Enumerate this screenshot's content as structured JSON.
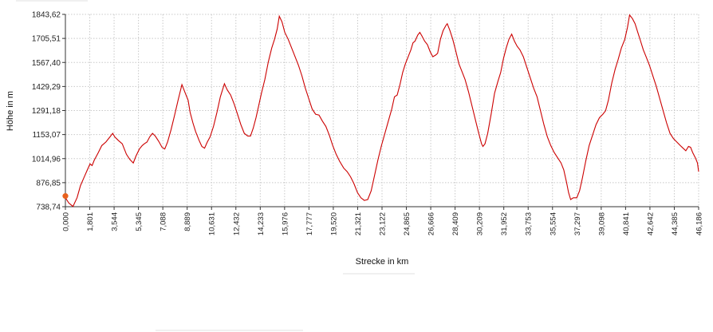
{
  "chart_data": {
    "type": "line",
    "xlabel": "Strecke  in  km",
    "ylabel": "Höhe  in  m",
    "xlim": [
      0,
      46.186
    ],
    "ylim": [
      738.74,
      1843.62
    ],
    "x_ticks": [
      "0,000",
      "1,801",
      "3,544",
      "5,345",
      "7,088",
      "8,889",
      "10,631",
      "12,432",
      "14,233",
      "15,976",
      "17,777",
      "19,520",
      "21,321",
      "23,122",
      "24,865",
      "26,666",
      "28,409",
      "30,209",
      "31,952",
      "33,753",
      "35,554",
      "37,297",
      "39,098",
      "40,841",
      "42,642",
      "44,385",
      "46,186"
    ],
    "y_ticks": [
      "738,74",
      "876,85",
      "1014,96",
      "1153,07",
      "1291,18",
      "1429,29",
      "1567,40",
      "1705,51",
      "1843,62"
    ],
    "grid": true,
    "marker": {
      "x": 0,
      "y": 800,
      "color": "#e8601c"
    },
    "series": [
      {
        "color": "#cc0000",
        "points": [
          [
            0.0,
            790
          ],
          [
            0.25,
            760
          ],
          [
            0.55,
            740
          ],
          [
            0.85,
            790
          ],
          [
            1.1,
            860
          ],
          [
            1.35,
            905
          ],
          [
            1.6,
            950
          ],
          [
            1.8,
            985
          ],
          [
            1.95,
            975
          ],
          [
            2.1,
            1005
          ],
          [
            2.4,
            1050
          ],
          [
            2.65,
            1090
          ],
          [
            2.95,
            1110
          ],
          [
            3.25,
            1140
          ],
          [
            3.45,
            1160
          ],
          [
            3.6,
            1140
          ],
          [
            3.85,
            1120
          ],
          [
            4.15,
            1100
          ],
          [
            4.45,
            1040
          ],
          [
            4.7,
            1010
          ],
          [
            4.95,
            990
          ],
          [
            5.15,
            1030
          ],
          [
            5.4,
            1070
          ],
          [
            5.6,
            1090
          ],
          [
            5.75,
            1100
          ],
          [
            5.95,
            1110
          ],
          [
            6.15,
            1140
          ],
          [
            6.35,
            1160
          ],
          [
            6.55,
            1145
          ],
          [
            6.8,
            1115
          ],
          [
            7.05,
            1080
          ],
          [
            7.25,
            1070
          ],
          [
            7.45,
            1110
          ],
          [
            7.7,
            1180
          ],
          [
            7.95,
            1260
          ],
          [
            8.2,
            1345
          ],
          [
            8.5,
            1440
          ],
          [
            8.75,
            1390
          ],
          [
            8.95,
            1350
          ],
          [
            9.1,
            1280
          ],
          [
            9.3,
            1220
          ],
          [
            9.5,
            1170
          ],
          [
            9.75,
            1120
          ],
          [
            9.95,
            1085
          ],
          [
            10.15,
            1075
          ],
          [
            10.35,
            1110
          ],
          [
            10.55,
            1140
          ],
          [
            10.8,
            1200
          ],
          [
            11.05,
            1280
          ],
          [
            11.3,
            1370
          ],
          [
            11.6,
            1445
          ],
          [
            11.8,
            1410
          ],
          [
            12.05,
            1380
          ],
          [
            12.3,
            1330
          ],
          [
            12.55,
            1270
          ],
          [
            12.8,
            1210
          ],
          [
            13.05,
            1160
          ],
          [
            13.3,
            1145
          ],
          [
            13.5,
            1145
          ],
          [
            13.7,
            1190
          ],
          [
            13.9,
            1250
          ],
          [
            14.1,
            1320
          ],
          [
            14.3,
            1390
          ],
          [
            14.55,
            1470
          ],
          [
            14.8,
            1570
          ],
          [
            15.05,
            1650
          ],
          [
            15.25,
            1700
          ],
          [
            15.45,
            1760
          ],
          [
            15.6,
            1833
          ],
          [
            15.8,
            1800
          ],
          [
            16.0,
            1740
          ],
          [
            16.25,
            1700
          ],
          [
            16.5,
            1650
          ],
          [
            16.75,
            1600
          ],
          [
            17.0,
            1550
          ],
          [
            17.25,
            1490
          ],
          [
            17.5,
            1420
          ],
          [
            17.75,
            1360
          ],
          [
            18.0,
            1300
          ],
          [
            18.25,
            1270
          ],
          [
            18.5,
            1265
          ],
          [
            18.75,
            1230
          ],
          [
            19.0,
            1200
          ],
          [
            19.25,
            1150
          ],
          [
            19.5,
            1090
          ],
          [
            19.75,
            1040
          ],
          [
            20.0,
            1000
          ],
          [
            20.3,
            960
          ],
          [
            20.55,
            940
          ],
          [
            20.8,
            910
          ],
          [
            21.05,
            870
          ],
          [
            21.3,
            820
          ],
          [
            21.55,
            790
          ],
          [
            21.8,
            775
          ],
          [
            22.05,
            780
          ],
          [
            22.3,
            830
          ],
          [
            22.55,
            920
          ],
          [
            22.8,
            1010
          ],
          [
            23.05,
            1090
          ],
          [
            23.3,
            1160
          ],
          [
            23.55,
            1230
          ],
          [
            23.8,
            1300
          ],
          [
            24.0,
            1370
          ],
          [
            24.2,
            1380
          ],
          [
            24.4,
            1440
          ],
          [
            24.6,
            1510
          ],
          [
            24.8,
            1560
          ],
          [
            25.0,
            1600
          ],
          [
            25.2,
            1640
          ],
          [
            25.35,
            1680
          ],
          [
            25.5,
            1690
          ],
          [
            25.7,
            1725
          ],
          [
            25.85,
            1740
          ],
          [
            26.0,
            1720
          ],
          [
            26.2,
            1690
          ],
          [
            26.4,
            1670
          ],
          [
            26.6,
            1630
          ],
          [
            26.8,
            1600
          ],
          [
            27.0,
            1610
          ],
          [
            27.15,
            1620
          ],
          [
            27.35,
            1700
          ],
          [
            27.55,
            1750
          ],
          [
            27.75,
            1780
          ],
          [
            27.85,
            1790
          ],
          [
            28.05,
            1750
          ],
          [
            28.25,
            1700
          ],
          [
            28.45,
            1640
          ],
          [
            28.7,
            1560
          ],
          [
            28.95,
            1510
          ],
          [
            29.15,
            1470
          ],
          [
            29.4,
            1400
          ],
          [
            29.65,
            1320
          ],
          [
            29.9,
            1240
          ],
          [
            30.15,
            1160
          ],
          [
            30.35,
            1100
          ],
          [
            30.45,
            1085
          ],
          [
            30.6,
            1100
          ],
          [
            30.8,
            1160
          ],
          [
            31.05,
            1270
          ],
          [
            31.3,
            1390
          ],
          [
            31.55,
            1460
          ],
          [
            31.75,
            1510
          ],
          [
            31.95,
            1590
          ],
          [
            32.15,
            1650
          ],
          [
            32.35,
            1700
          ],
          [
            32.55,
            1730
          ],
          [
            32.75,
            1690
          ],
          [
            32.95,
            1660
          ],
          [
            33.15,
            1640
          ],
          [
            33.4,
            1600
          ],
          [
            33.65,
            1540
          ],
          [
            33.9,
            1480
          ],
          [
            34.15,
            1420
          ],
          [
            34.4,
            1370
          ],
          [
            34.65,
            1290
          ],
          [
            34.9,
            1210
          ],
          [
            35.15,
            1140
          ],
          [
            35.4,
            1090
          ],
          [
            35.65,
            1050
          ],
          [
            35.9,
            1020
          ],
          [
            36.15,
            990
          ],
          [
            36.35,
            950
          ],
          [
            36.55,
            880
          ],
          [
            36.7,
            820
          ],
          [
            36.85,
            780
          ],
          [
            37.05,
            790
          ],
          [
            37.3,
            790
          ],
          [
            37.5,
            830
          ],
          [
            37.7,
            900
          ],
          [
            37.95,
            1000
          ],
          [
            38.2,
            1090
          ],
          [
            38.45,
            1150
          ],
          [
            38.7,
            1210
          ],
          [
            38.95,
            1250
          ],
          [
            39.2,
            1270
          ],
          [
            39.4,
            1290
          ],
          [
            39.6,
            1350
          ],
          [
            39.85,
            1450
          ],
          [
            40.1,
            1530
          ],
          [
            40.3,
            1580
          ],
          [
            40.55,
            1650
          ],
          [
            40.8,
            1700
          ],
          [
            41.0,
            1770
          ],
          [
            41.15,
            1840
          ],
          [
            41.35,
            1820
          ],
          [
            41.55,
            1790
          ],
          [
            41.75,
            1740
          ],
          [
            41.95,
            1690
          ],
          [
            42.15,
            1640
          ],
          [
            42.35,
            1600
          ],
          [
            42.6,
            1550
          ],
          [
            42.85,
            1490
          ],
          [
            43.1,
            1430
          ],
          [
            43.35,
            1360
          ],
          [
            43.6,
            1290
          ],
          [
            43.85,
            1220
          ],
          [
            44.1,
            1160
          ],
          [
            44.35,
            1130
          ],
          [
            44.6,
            1110
          ],
          [
            44.85,
            1090
          ],
          [
            45.05,
            1075
          ],
          [
            45.25,
            1060
          ],
          [
            45.45,
            1085
          ],
          [
            45.6,
            1080
          ],
          [
            45.75,
            1050
          ],
          [
            45.95,
            1020
          ],
          [
            46.1,
            990
          ],
          [
            46.186,
            940
          ],
          [
            46.186,
            940
          ]
        ]
      }
    ]
  }
}
